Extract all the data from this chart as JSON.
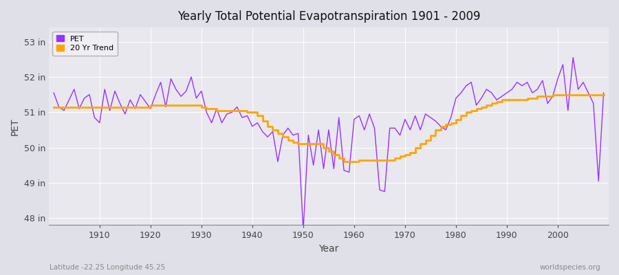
{
  "title": "Yearly Total Potential Evapotranspiration 1901 - 2009",
  "xlabel": "Year",
  "ylabel": "PET",
  "subtitle_left": "Latitude -22.25 Longitude 45.25",
  "subtitle_right": "worldspecies.org",
  "pet_color": "#9B30FF",
  "trend_color": "#FFA500",
  "bg_color": "#E8E8EE",
  "fig_color": "#E0E0E8",
  "grid_color": "#ffffff",
  "ylim": [
    47.8,
    53.4
  ],
  "yticks": [
    48,
    49,
    50,
    51,
    52,
    53
  ],
  "ytick_labels": [
    "48 in",
    "49 in",
    "50 in",
    "51 in",
    "52 in",
    "53 in"
  ],
  "years": [
    1901,
    1902,
    1903,
    1904,
    1905,
    1906,
    1907,
    1908,
    1909,
    1910,
    1911,
    1912,
    1913,
    1914,
    1915,
    1916,
    1917,
    1918,
    1919,
    1920,
    1921,
    1922,
    1923,
    1924,
    1925,
    1926,
    1927,
    1928,
    1929,
    1930,
    1931,
    1932,
    1933,
    1934,
    1935,
    1936,
    1937,
    1938,
    1939,
    1940,
    1941,
    1942,
    1943,
    1944,
    1945,
    1946,
    1947,
    1948,
    1949,
    1950,
    1951,
    1952,
    1953,
    1954,
    1955,
    1956,
    1957,
    1958,
    1959,
    1960,
    1961,
    1962,
    1963,
    1964,
    1965,
    1966,
    1967,
    1968,
    1969,
    1970,
    1971,
    1972,
    1973,
    1974,
    1975,
    1976,
    1977,
    1978,
    1979,
    1980,
    1981,
    1982,
    1983,
    1984,
    1985,
    1986,
    1987,
    1988,
    1989,
    1990,
    1991,
    1992,
    1993,
    1994,
    1995,
    1996,
    1997,
    1998,
    1999,
    2000,
    2001,
    2002,
    2003,
    2004,
    2005,
    2006,
    2007,
    2008,
    2009
  ],
  "pet": [
    51.55,
    51.15,
    51.05,
    51.35,
    51.65,
    51.1,
    51.4,
    51.5,
    50.85,
    50.7,
    51.65,
    51.05,
    51.6,
    51.25,
    50.95,
    51.35,
    51.1,
    51.5,
    51.3,
    51.1,
    51.5,
    51.85,
    51.15,
    51.95,
    51.65,
    51.45,
    51.6,
    52.0,
    51.4,
    51.6,
    51.0,
    50.7,
    51.1,
    50.7,
    50.95,
    51.0,
    51.15,
    50.85,
    50.9,
    50.6,
    50.7,
    50.45,
    50.3,
    50.45,
    49.6,
    50.35,
    50.55,
    50.35,
    50.4,
    47.65,
    50.35,
    49.5,
    50.5,
    49.4,
    50.5,
    49.4,
    50.85,
    49.35,
    49.3,
    50.8,
    50.9,
    50.5,
    50.95,
    50.55,
    48.8,
    48.75,
    50.55,
    50.55,
    50.35,
    50.8,
    50.5,
    50.9,
    50.5,
    50.95,
    50.85,
    50.75,
    50.6,
    50.5,
    50.85,
    51.4,
    51.55,
    51.75,
    51.85,
    51.2,
    51.4,
    51.65,
    51.55,
    51.35,
    51.45,
    51.55,
    51.65,
    51.85,
    51.75,
    51.85,
    51.55,
    51.65,
    51.9,
    51.25,
    51.45,
    51.95,
    52.35,
    51.05,
    52.55,
    51.65,
    51.85,
    51.55,
    51.25,
    49.05,
    51.55
  ],
  "trend": [
    51.15,
    51.15,
    51.15,
    51.15,
    51.15,
    51.15,
    51.15,
    51.15,
    51.15,
    51.15,
    51.15,
    51.15,
    51.15,
    51.15,
    51.15,
    51.15,
    51.15,
    51.15,
    51.15,
    51.2,
    51.2,
    51.2,
    51.2,
    51.2,
    51.2,
    51.2,
    51.2,
    51.2,
    51.2,
    51.15,
    51.1,
    51.1,
    51.05,
    51.05,
    51.05,
    51.05,
    51.05,
    51.05,
    51.0,
    51.0,
    50.9,
    50.75,
    50.6,
    50.5,
    50.4,
    50.3,
    50.2,
    50.15,
    50.1,
    50.1,
    50.1,
    50.1,
    50.1,
    50.0,
    49.9,
    49.8,
    49.7,
    49.6,
    49.6,
    49.6,
    49.65,
    49.65,
    49.65,
    49.65,
    49.65,
    49.65,
    49.65,
    49.7,
    49.75,
    49.8,
    49.85,
    50.0,
    50.1,
    50.2,
    50.35,
    50.5,
    50.6,
    50.65,
    50.7,
    50.8,
    50.9,
    51.0,
    51.05,
    51.1,
    51.15,
    51.2,
    51.25,
    51.3,
    51.35,
    51.35,
    51.35,
    51.35,
    51.35,
    51.4,
    51.4,
    51.45,
    51.45,
    51.45,
    51.5,
    51.5,
    51.5,
    51.5,
    51.5,
    51.5,
    51.5,
    51.5,
    51.5,
    51.5,
    51.5
  ],
  "xlim": [
    1900,
    2010
  ],
  "xticks": [
    1910,
    1920,
    1930,
    1940,
    1950,
    1960,
    1970,
    1980,
    1990,
    2000
  ]
}
